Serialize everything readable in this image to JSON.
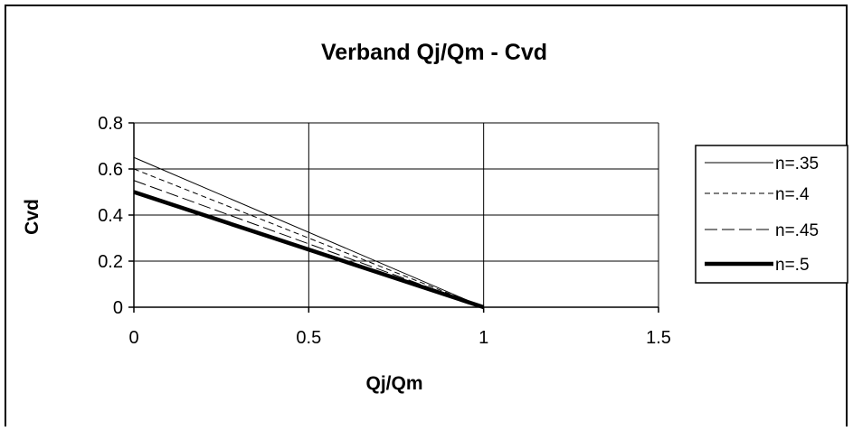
{
  "chart_data": {
    "type": "line",
    "title": "Verband Qj/Qm - Cvd",
    "xlabel": "Qj/Qm",
    "ylabel": "Cvd",
    "xlim": [
      0,
      1.5
    ],
    "ylim": [
      0,
      0.8
    ],
    "xticks": [
      0,
      0.5,
      1,
      1.5
    ],
    "xtick_labels": [
      "0",
      "0.5",
      "1",
      "1.5"
    ],
    "yticks": [
      0,
      0.2,
      0.4,
      0.6,
      0.8
    ],
    "ytick_labels": [
      "0",
      "0.2",
      "0.4",
      "0.6",
      "0.8"
    ],
    "grid": true,
    "legend_position": "right",
    "series": [
      {
        "name": "n=.35",
        "x": [
          0,
          1
        ],
        "y": [
          0.65,
          0
        ],
        "style": "solid-thin",
        "color": "#000000"
      },
      {
        "name": "n=.4",
        "x": [
          0,
          1
        ],
        "y": [
          0.6,
          0
        ],
        "style": "dashed-short",
        "color": "#000000"
      },
      {
        "name": "n=.45",
        "x": [
          0,
          1
        ],
        "y": [
          0.55,
          0
        ],
        "style": "dashed-long",
        "color": "#000000"
      },
      {
        "name": "n=.5",
        "x": [
          0,
          1
        ],
        "y": [
          0.5,
          0
        ],
        "style": "solid-thick",
        "color": "#000000"
      }
    ]
  }
}
